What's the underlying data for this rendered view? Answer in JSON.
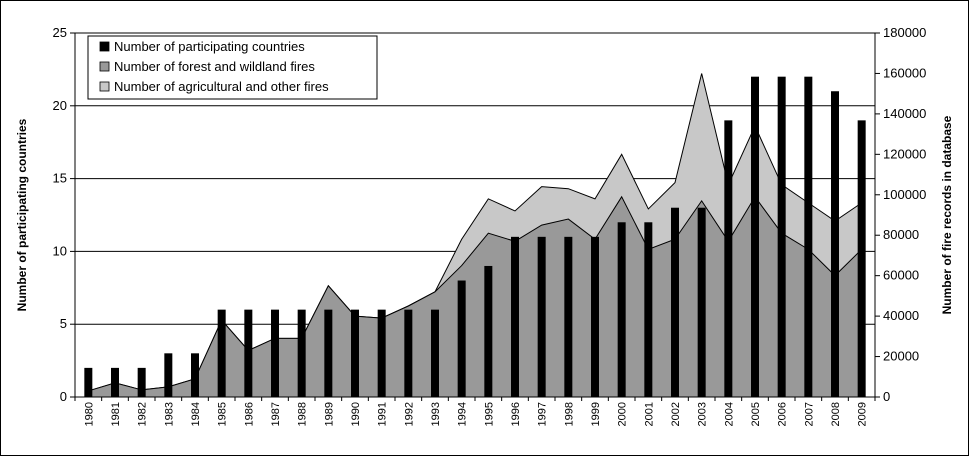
{
  "chart_data": {
    "type": "bar+area",
    "categories": [
      "1980",
      "1981",
      "1982",
      "1983",
      "1984",
      "1985",
      "1986",
      "1987",
      "1988",
      "1989",
      "1990",
      "1991",
      "1992",
      "1993",
      "1994",
      "1995",
      "1996",
      "1997",
      "1998",
      "1999",
      "2000",
      "2001",
      "2002",
      "2003",
      "2004",
      "2005",
      "2006",
      "2007",
      "2008",
      "2009"
    ],
    "series": [
      {
        "name": "Number of participating countries",
        "type": "bar",
        "axis": "left",
        "color": "#000000",
        "values": [
          2,
          2,
          2,
          3,
          3,
          6,
          6,
          6,
          6,
          6,
          6,
          6,
          6,
          6,
          8,
          9,
          11,
          11,
          11,
          11,
          12,
          12,
          13,
          13,
          19,
          22,
          22,
          22,
          21,
          19
        ]
      },
      {
        "name": "Number of forest and wildland fires",
        "type": "area",
        "axis": "right",
        "color": "#999999",
        "values": [
          3000,
          7000,
          3500,
          5000,
          9000,
          38000,
          23000,
          29000,
          29000,
          55000,
          40000,
          39000,
          45000,
          52000,
          65000,
          81000,
          77000,
          85000,
          88000,
          78000,
          99000,
          73000,
          78000,
          97000,
          77000,
          99000,
          81000,
          73000,
          60000,
          73000
        ]
      },
      {
        "name": "Number of agricultural and other fires",
        "type": "area",
        "axis": "right",
        "color": "#c8c8c8",
        "values": [
          3000,
          7000,
          3500,
          5000,
          9000,
          38000,
          23000,
          29000,
          29000,
          55000,
          40000,
          39000,
          45000,
          52000,
          78000,
          98000,
          92000,
          104000,
          103000,
          98000,
          120000,
          93000,
          106000,
          160000,
          105000,
          134000,
          105000,
          96000,
          87000,
          96000
        ]
      }
    ],
    "y_left": {
      "label": "Number of participating countries",
      "range": [
        0,
        25
      ],
      "ticks": [
        "0",
        "5",
        "10",
        "15",
        "20",
        "25"
      ]
    },
    "y_right": {
      "label": "Number of fire records in database",
      "range": [
        0,
        180000
      ],
      "ticks": [
        "0",
        "20000",
        "40000",
        "60000",
        "80000",
        "100000",
        "120000",
        "140000",
        "160000",
        "180000"
      ]
    },
    "grid": "horizontal at left-axis major ticks",
    "legend_position": "top-left"
  }
}
